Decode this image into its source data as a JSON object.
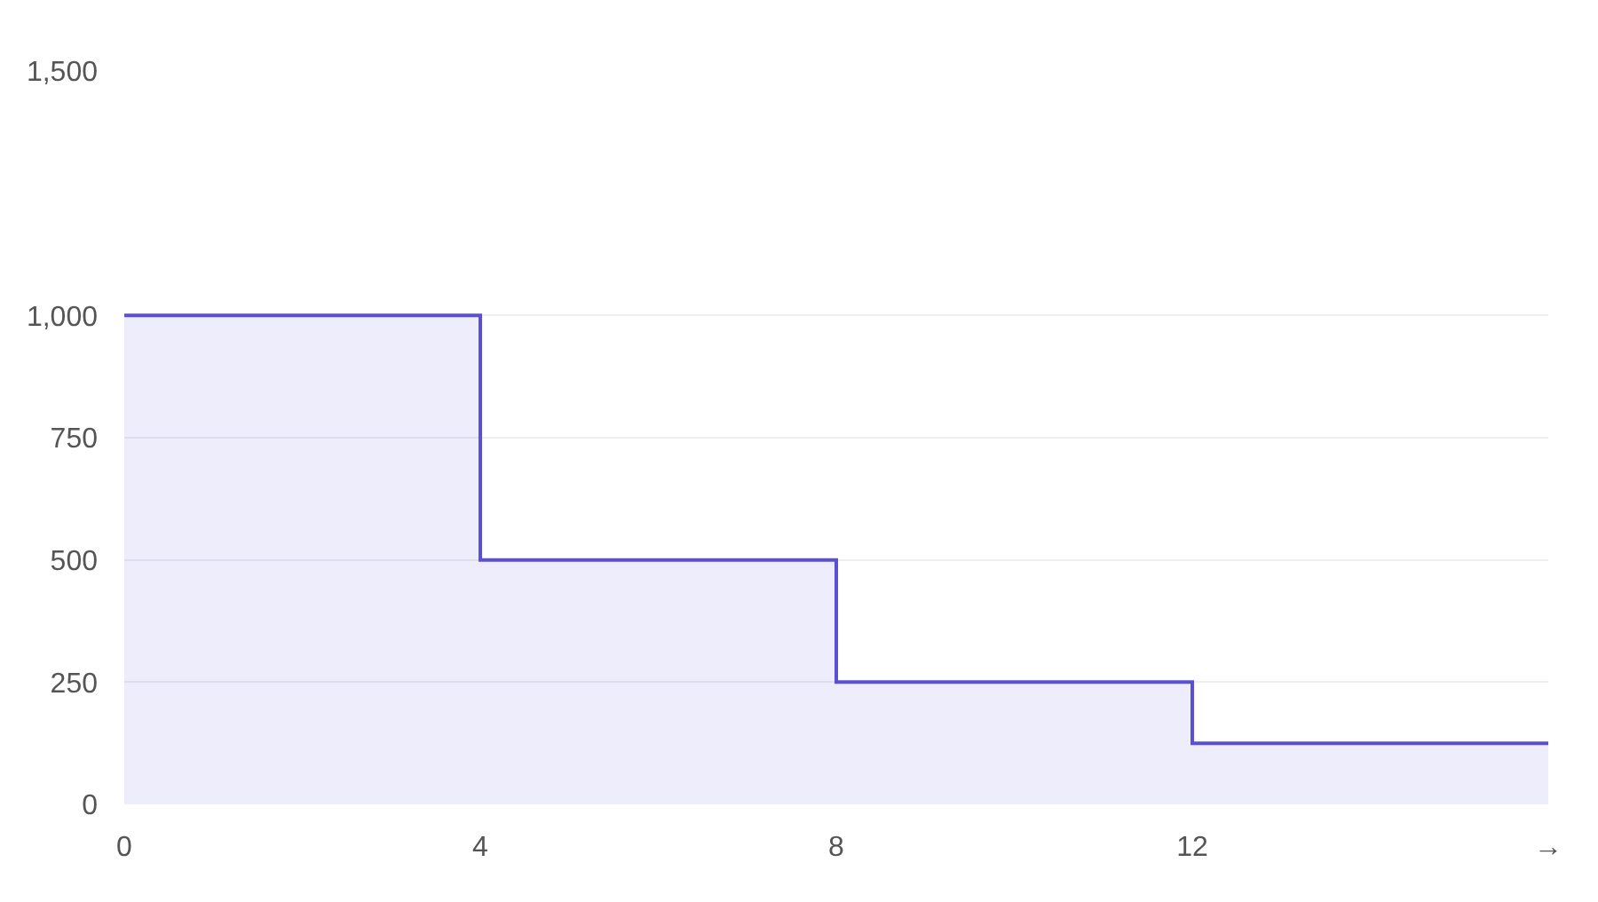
{
  "chart_data": {
    "type": "area",
    "x": [
      0,
      4,
      4,
      8,
      8,
      12,
      12,
      16
    ],
    "series": [
      {
        "color": "#5b4fd6",
        "values": [
          1000,
          1000,
          500,
          500,
          250,
          250,
          125,
          125
        ]
      }
    ],
    "xlim": [
      0,
      16
    ],
    "xticks": [
      0,
      4,
      8,
      12,
      {
        "value": 16,
        "label": "→"
      }
    ],
    "ylim": [
      0,
      1500
    ],
    "yticks": [
      0,
      250,
      500,
      750,
      {
        "value": 1000,
        "label": "1,000"
      },
      {
        "value": 1500,
        "label": "1,500"
      }
    ],
    "grid": "y",
    "marker": "none",
    "line_style": "solid"
  }
}
